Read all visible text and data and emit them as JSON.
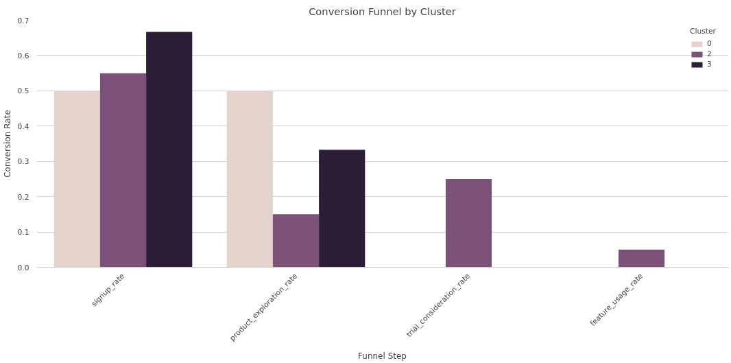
{
  "chart_data": {
    "type": "bar",
    "title": "Conversion Funnel by Cluster",
    "xlabel": "Funnel Step",
    "ylabel": "Conversion Rate",
    "legend_title": "Cluster",
    "categories": [
      "signup_rate",
      "product_exploration_rate",
      "trial_consideration_rate",
      "feature_usage_rate"
    ],
    "series": [
      {
        "name": "0",
        "color": "#e4d2cc",
        "values": [
          0.5,
          0.5,
          0,
          0
        ]
      },
      {
        "name": "2",
        "color": "#7b5079",
        "values": [
          0.55,
          0.15,
          0.25,
          0.05
        ]
      },
      {
        "name": "3",
        "color": "#2d1e37",
        "values": [
          0.667,
          0.333,
          0,
          0
        ]
      }
    ],
    "ylim": [
      0,
      0.7
    ],
    "yticks": [
      {
        "value": 0,
        "label": "0.0"
      },
      0.1,
      0.2,
      0.3,
      0.4,
      0.5,
      0.6,
      0.7
    ],
    "grid": "y",
    "legend": "top right"
  }
}
